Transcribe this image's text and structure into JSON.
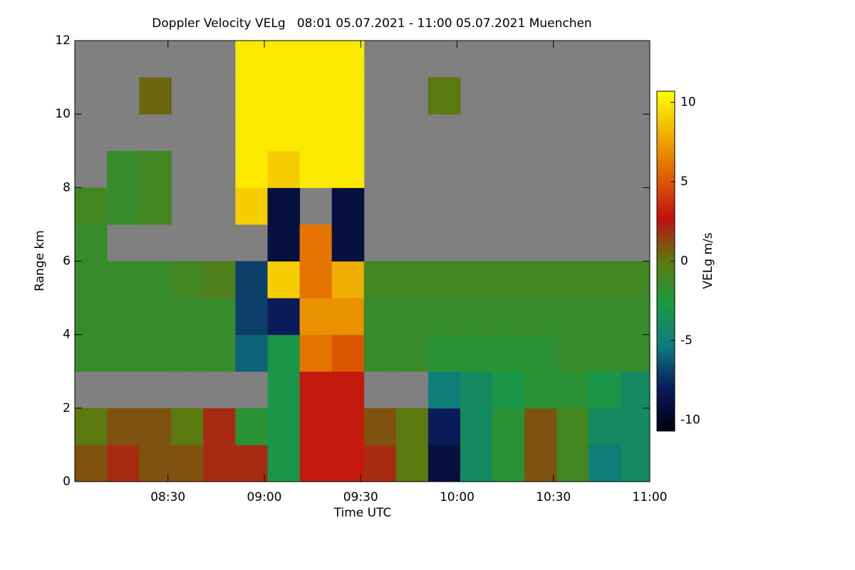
{
  "chart_data": {
    "type": "heatmap",
    "title": "Doppler Velocity VELg   08:01 05.07.2021 - 11:00 05.07.2021 Muenchen",
    "xlabel": "Time UTC",
    "ylabel": "Range km",
    "colorbar_label": "VELg m/s",
    "xlim": [
      481,
      660
    ],
    "xticks": [
      {
        "value": 510,
        "label": "08:30"
      },
      {
        "value": 540,
        "label": "09:00"
      },
      {
        "value": 570,
        "label": "09:30"
      },
      {
        "value": 600,
        "label": "10:00"
      },
      {
        "value": 630,
        "label": "10:30"
      },
      {
        "value": 660,
        "label": "11:00"
      }
    ],
    "ylim": [
      0,
      12
    ],
    "yticks": [
      0,
      2,
      4,
      6,
      8,
      10,
      12
    ],
    "zlim": [
      -10.7,
      10.7
    ],
    "zticks": [
      10,
      5,
      0,
      -5,
      -10
    ],
    "colormap": [
      "#000010",
      "#0a1a5a",
      "#0e7a80",
      "#1a9a40",
      "#5a7a10",
      "#c01010",
      "#e06000",
      "#f0b000",
      "#ffff00"
    ],
    "missing_color": "#808080",
    "x": [
      486,
      496,
      506,
      516,
      526,
      536,
      546,
      556,
      566,
      576,
      586,
      596,
      606,
      616,
      626,
      636,
      646,
      656
    ],
    "y": [
      0.5,
      1.5,
      2.5,
      3.5,
      4.5,
      5.5,
      6.5,
      7.5,
      8.5,
      9.5,
      10.5,
      11.5
    ],
    "z": [
      [
        1,
        2,
        1,
        1,
        2,
        2,
        -3,
        3,
        3,
        2,
        0,
        -9,
        -4,
        -2,
        1,
        -1,
        -5,
        -4
      ],
      [
        0,
        1,
        1,
        0,
        2,
        -2,
        -3,
        3,
        3,
        1,
        0,
        -8,
        -4,
        -2,
        1,
        -1,
        -4,
        -4
      ],
      [
        null,
        null,
        null,
        null,
        null,
        null,
        -3,
        3,
        3,
        null,
        null,
        -5,
        -4,
        -3,
        -2,
        -2,
        -3,
        -4
      ],
      [
        -1.5,
        -1.5,
        -1.5,
        -1.5,
        -1.5,
        -6,
        -3,
        6,
        5,
        -1.5,
        -1.5,
        -2,
        -2,
        -2,
        -2,
        -1.5,
        -1.5,
        -1.5
      ],
      [
        -1.5,
        -1.5,
        -1.5,
        -1.5,
        -1.5,
        -7,
        -8,
        7,
        7,
        -1.5,
        -1.5,
        -1.5,
        -1.5,
        -1.5,
        -1.5,
        -1.5,
        -1.5,
        -1.5
      ],
      [
        -1.5,
        -1.5,
        -1.5,
        -1,
        -0.5,
        -7,
        9,
        6,
        8,
        -1,
        -1,
        -1,
        -1,
        -1,
        -1,
        -1,
        -1,
        -1
      ],
      [
        -1.5,
        null,
        null,
        null,
        null,
        null,
        -9,
        6,
        -9,
        null,
        null,
        null,
        null,
        null,
        null,
        null,
        null,
        null
      ],
      [
        -1,
        -1.5,
        -1,
        null,
        null,
        9,
        -9,
        null,
        -9,
        null,
        null,
        null,
        null,
        null,
        null,
        null,
        null,
        null
      ],
      [
        null,
        -1.5,
        -1,
        null,
        null,
        10,
        9,
        10,
        10,
        null,
        null,
        null,
        null,
        null,
        null,
        null,
        null,
        null
      ],
      [
        null,
        null,
        null,
        null,
        null,
        10,
        10,
        10,
        10,
        null,
        null,
        null,
        null,
        null,
        null,
        null,
        null,
        null
      ],
      [
        null,
        null,
        0.5,
        null,
        null,
        10,
        10,
        10,
        10,
        null,
        null,
        0,
        null,
        null,
        null,
        null,
        null,
        null
      ],
      [
        null,
        null,
        null,
        null,
        null,
        10,
        10,
        10,
        10,
        null,
        null,
        null,
        null,
        null,
        null,
        null,
        null,
        null
      ]
    ]
  }
}
